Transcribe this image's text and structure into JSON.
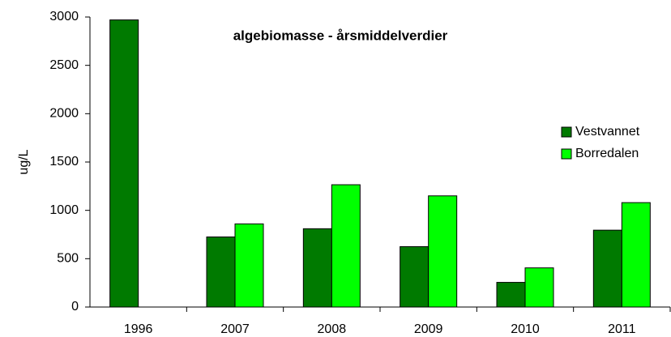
{
  "chart_data": {
    "type": "bar",
    "title": "algebiomasse - årsmiddelverdier",
    "y_label": "ug/L",
    "categories": [
      "1996",
      "2007",
      "2008",
      "2009",
      "2010",
      "2011"
    ],
    "series": [
      {
        "name": "Vestvannet",
        "color": "#007a00",
        "values": [
          2970,
          725,
          810,
          625,
          255,
          795
        ]
      },
      {
        "name": "Borredalen",
        "color": "#00ff00",
        "values": [
          null,
          860,
          1265,
          1150,
          405,
          1080
        ]
      }
    ],
    "ylim": [
      0,
      3000
    ],
    "yticks": [
      0,
      500,
      1000,
      1500,
      2000,
      2500,
      3000
    ],
    "grid": false,
    "legend": "right"
  }
}
